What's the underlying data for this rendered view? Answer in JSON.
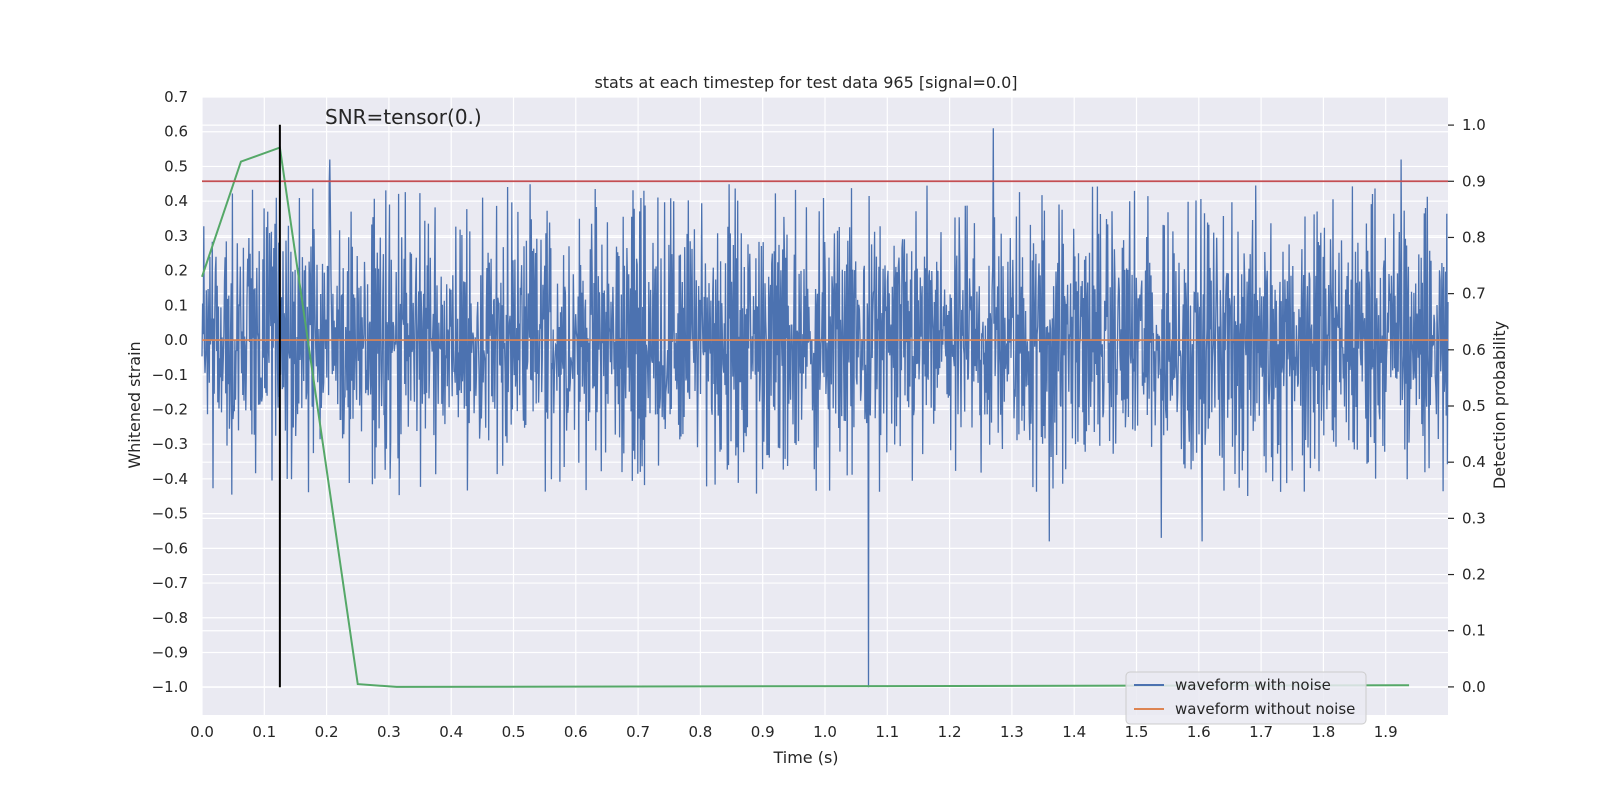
{
  "chart_data": {
    "type": "line",
    "title": "stats at each timestep for test data 965 [signal=0.0]",
    "xlabel": "Time (s)",
    "ylabel_left": "Whitened strain",
    "ylabel_right": "Detection probability",
    "xlim": [
      0.0,
      2.0
    ],
    "ylim_left": [
      -1.08,
      0.7
    ],
    "ylim_right": [
      -0.05,
      1.05
    ],
    "x_ticks": [
      0.0,
      0.1,
      0.2,
      0.3,
      0.4,
      0.5,
      0.6,
      0.7,
      0.8,
      0.9,
      1.0,
      1.1,
      1.2,
      1.3,
      1.4,
      1.5,
      1.6,
      1.7,
      1.8,
      1.9
    ],
    "x_tick_labels": [
      "0.0",
      "0.1",
      "0.2",
      "0.3",
      "0.4",
      "0.5",
      "0.6",
      "0.7",
      "0.8",
      "0.9",
      "1.0",
      "1.1",
      "1.2",
      "1.3",
      "1.4",
      "1.5",
      "1.6",
      "1.7",
      "1.8",
      "1.9"
    ],
    "y_left_ticks": [
      0.7,
      0.6,
      0.5,
      0.4,
      0.3,
      0.2,
      0.1,
      0.0,
      -0.1,
      -0.2,
      -0.3,
      -0.4,
      -0.5,
      -0.6,
      -0.7,
      -0.8,
      -0.9,
      -1.0
    ],
    "y_left_tick_labels": [
      "0.7",
      "0.6",
      "0.5",
      "0.4",
      "0.3",
      "0.2",
      "0.1",
      "0.0",
      "−0.1",
      "−0.2",
      "−0.3",
      "−0.4",
      "−0.5",
      "−0.6",
      "−0.7",
      "−0.8",
      "−0.9",
      "−1.0"
    ],
    "y_right_ticks": [
      1.0,
      0.9,
      0.8,
      0.7,
      0.6,
      0.5,
      0.4,
      0.3,
      0.2,
      0.1,
      0.0
    ],
    "y_right_tick_labels": [
      "1.0",
      "0.9",
      "0.8",
      "0.7",
      "0.6",
      "0.5",
      "0.4",
      "0.3",
      "0.2",
      "0.1",
      "0.0"
    ],
    "annotation": "SNR=tensor(0.)",
    "threshold_line": {
      "axis": "right",
      "value": 0.9,
      "color": "#c44e52"
    },
    "marker_line": {
      "x": 0.125,
      "y_range_left": [
        -1.0,
        0.62
      ],
      "color": "#000000"
    },
    "series": [
      {
        "name": "waveform with noise",
        "axis": "left",
        "color": "#4c72b0",
        "description_values": {
          "samples": 2048,
          "x_start": 0.0,
          "x_end": 2.0,
          "typical_range": [
            -0.45,
            0.45
          ],
          "peaks": [
            {
              "x": 1.27,
              "y": 0.61
            },
            {
              "x": 1.925,
              "y": 0.52
            },
            {
              "x": 0.205,
              "y": 0.52
            },
            {
              "x": 1.07,
              "y": -1.0
            },
            {
              "x": 1.36,
              "y": -0.58
            },
            {
              "x": 1.54,
              "y": -0.57
            },
            {
              "x": 1.605,
              "y": -0.58
            }
          ]
        }
      },
      {
        "name": "waveform without noise",
        "axis": "left",
        "color": "#dd8452",
        "x": [
          0.0,
          2.0
        ],
        "y": [
          0.0,
          0.0
        ]
      },
      {
        "name": "detection probability",
        "axis": "right",
        "color": "#55a868",
        "x": [
          0.0,
          0.0625,
          0.125,
          0.25,
          0.3125,
          1.9375
        ],
        "y": [
          0.73,
          0.935,
          0.96,
          0.005,
          0.0,
          0.003
        ]
      }
    ],
    "legend": {
      "location": "lower-right",
      "entries": [
        {
          "label": "waveform with noise",
          "color": "#4c72b0"
        },
        {
          "label": "waveform without noise",
          "color": "#dd8452"
        }
      ]
    },
    "colors": {
      "plot_background": "#eaeaf2",
      "grid": "#ffffff",
      "page_background": "#ffffff"
    }
  }
}
